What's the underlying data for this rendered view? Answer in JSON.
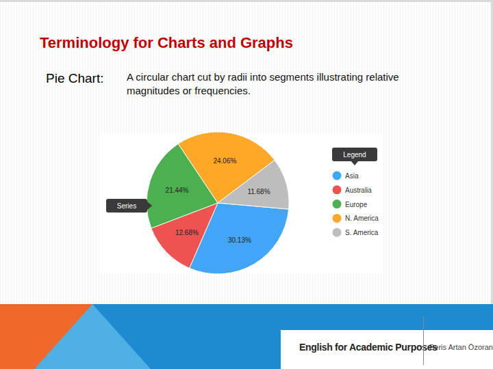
{
  "slide": {
    "title": "Terminology for Charts and Graphs",
    "term": "Pie Chart:",
    "definition": "A circular chart cut by radii into segments illustrating relative magnitudes or frequencies.",
    "course": "English for Academic Purposes",
    "author": "Beris Artan Özoran"
  },
  "chart_data": {
    "type": "pie",
    "categories": [
      "Asia",
      "Australia",
      "Europe",
      "N. America",
      "S. America"
    ],
    "values": [
      30.13,
      12.68,
      21.44,
      24.06,
      11.68
    ],
    "value_labels": [
      "30.13%",
      "12.68%",
      "21.44%",
      "24.06%",
      "11.68%"
    ],
    "colors": [
      "#42a5f5",
      "#ef5350",
      "#4caf50",
      "#ffa726",
      "#bdbdbd"
    ],
    "data_labels": true,
    "legend": "right",
    "annotations": [
      "Legend",
      "Series"
    ]
  }
}
